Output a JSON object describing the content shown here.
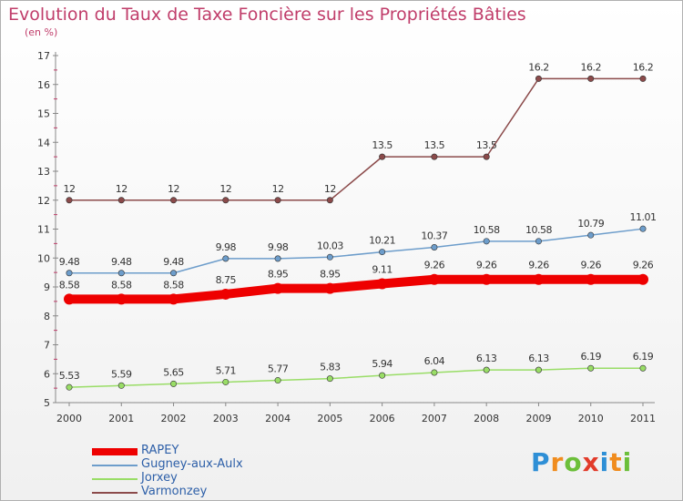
{
  "chart_data": {
    "type": "line",
    "title": "Evolution du Taux de Taxe Foncière sur les Propriétés Bâties",
    "ylabel": "(en %)",
    "xlabel": "",
    "ylim": [
      5,
      17
    ],
    "yticks": [
      "5",
      "6",
      "7",
      "8",
      "9",
      "10",
      "11",
      "12",
      "13",
      "14",
      "15",
      "16",
      "17"
    ],
    "categories": [
      "2000",
      "2001",
      "2002",
      "2003",
      "2004",
      "2005",
      "2006",
      "2007",
      "2008",
      "2009",
      "2010",
      "2011"
    ],
    "grid": false,
    "series": [
      {
        "name": "RAPEY",
        "color": "#ee0000",
        "values": [
          8.58,
          8.58,
          8.58,
          8.75,
          8.95,
          8.95,
          9.11,
          9.26,
          9.26,
          9.26,
          9.26,
          9.26
        ],
        "labels": [
          "8.58",
          "8.58",
          "8.58",
          "8.75",
          "8.95",
          "8.95",
          "9.11",
          "9.26",
          "9.26",
          "9.26",
          "9.26",
          "9.26"
        ]
      },
      {
        "name": "Gugney-aux-Aulx",
        "color": "#6d9dcb",
        "values": [
          9.48,
          9.48,
          9.48,
          9.98,
          9.98,
          10.03,
          10.21,
          10.37,
          10.58,
          10.58,
          10.79,
          11.01
        ],
        "labels": [
          "9.48",
          "9.48",
          "9.48",
          "9.98",
          "9.98",
          "10.03",
          "10.21",
          "10.37",
          "10.58",
          "10.58",
          "10.79",
          "11.01"
        ]
      },
      {
        "name": "Jorxey",
        "color": "#99dd66",
        "values": [
          5.53,
          5.59,
          5.65,
          5.71,
          5.77,
          5.83,
          5.94,
          6.04,
          6.13,
          6.13,
          6.19,
          6.19
        ],
        "labels": [
          "5.53",
          "5.59",
          "5.65",
          "5.71",
          "5.77",
          "5.83",
          "5.94",
          "6.04",
          "6.13",
          "6.13",
          "6.19",
          "6.19"
        ]
      },
      {
        "name": "Varmonzey",
        "color": "#8b4a4a",
        "values": [
          12,
          12,
          12,
          12,
          12,
          12,
          13.5,
          13.5,
          13.5,
          16.2,
          16.2,
          16.2
        ],
        "labels": [
          "12",
          "12",
          "12",
          "12",
          "12",
          "12",
          "13.5",
          "13.5",
          "13.5",
          "16.2",
          "16.2",
          "16.2"
        ]
      }
    ]
  },
  "logo": {
    "letters": [
      "P",
      "r",
      "o",
      "x",
      "i",
      "t",
      "i"
    ],
    "colors": [
      "#2e8fd6",
      "#f08c1e",
      "#6cbf3a",
      "#e23b2a",
      "#2e8fd6",
      "#f08c1e",
      "#6cbf3a"
    ]
  }
}
